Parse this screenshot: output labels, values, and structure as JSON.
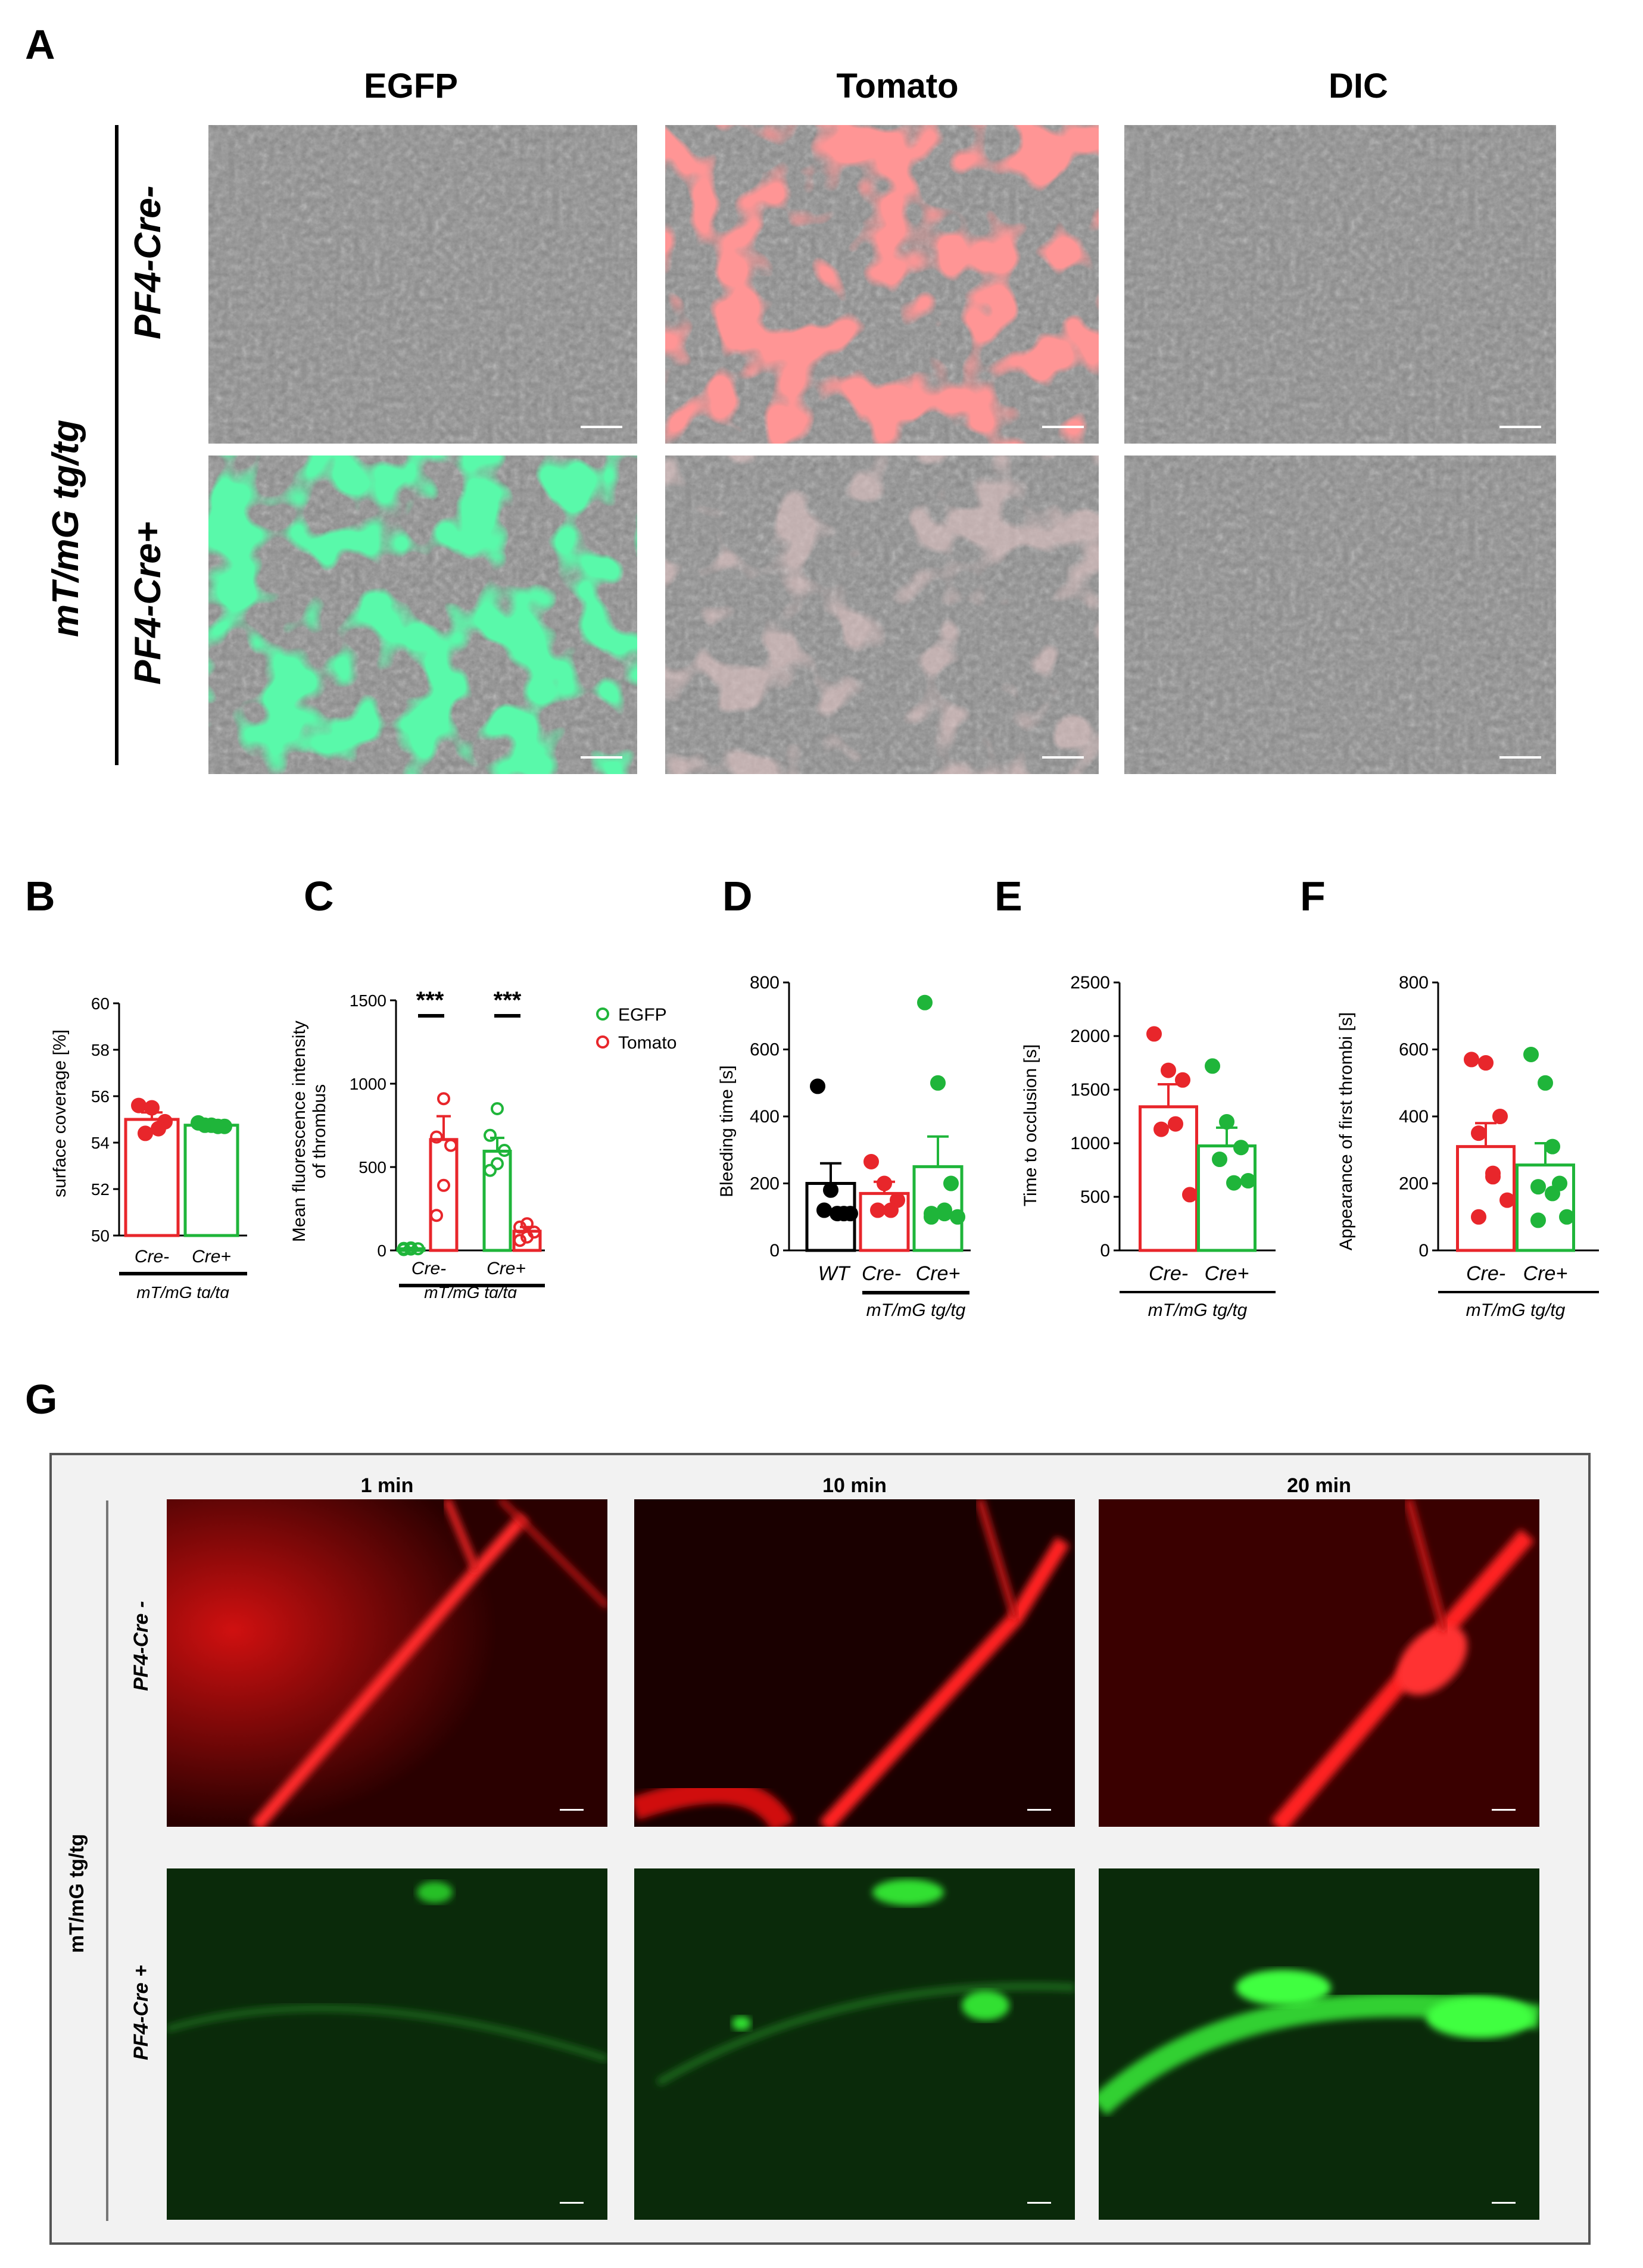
{
  "panel_a": {
    "letter": "A",
    "columns": [
      "EGFP",
      "Tomato",
      "DIC"
    ],
    "group_label": "mT/mG tg/tg",
    "rows": [
      "PF4-Cre-",
      "PF4-Cre+"
    ]
  },
  "panel_b": {
    "letter": "B",
    "ylabel": "surface coverage [%]",
    "yticks": [
      "60",
      "58",
      "56",
      "54",
      "52",
      "50"
    ],
    "categories": [
      "Cre-",
      "Cre+"
    ],
    "group": "mT/mG tg/tg"
  },
  "panel_c": {
    "letter": "C",
    "ylabel_line1": "Mean fluorescence intensity",
    "ylabel_line2": "of thrombus",
    "yticks": [
      "1500",
      "1000",
      "500",
      "0"
    ],
    "categories": [
      "Cre-",
      "Cre+"
    ],
    "group": "mT/mG tg/tg",
    "sig": "***",
    "legend": [
      "EGFP",
      "Tomato"
    ]
  },
  "panel_d": {
    "letter": "D",
    "ylabel": "Bleeding time [s]",
    "yticks": [
      "800",
      "600",
      "400",
      "200",
      "0"
    ],
    "categories": [
      "WT",
      "Cre-",
      "Cre+"
    ],
    "group": "mT/mG tg/tg"
  },
  "panel_e": {
    "letter": "E",
    "ylabel": "Time to occlusion [s]",
    "yticks": [
      "2500",
      "2000",
      "1500",
      "1000",
      "500",
      "0"
    ],
    "categories": [
      "Cre-",
      "Cre+"
    ],
    "group": "mT/mG tg/tg"
  },
  "panel_f": {
    "letter": "F",
    "ylabel": "Appearance of first thrombi [s]",
    "yticks": [
      "800",
      "600",
      "400",
      "200",
      "0"
    ],
    "categories": [
      "Cre-",
      "Cre+"
    ],
    "group": "mT/mG tg/tg"
  },
  "panel_g": {
    "letter": "G",
    "columns": [
      "1 min",
      "10 min",
      "20 min"
    ],
    "group_label": "mT/mG tg/tg",
    "rows": [
      "PF4-Cre -",
      "PF4-Cre +"
    ]
  },
  "colors": {
    "red": "#e8262b",
    "green": "#1fb53a",
    "black": "#000000",
    "egfp_bright": "#22e86a",
    "tomato_bright": "#ff3030"
  },
  "chart_data": [
    {
      "type": "bar",
      "panel": "B",
      "categories": [
        "Cre-",
        "Cre+"
      ],
      "values": [
        55.0,
        54.75
      ],
      "sem": [
        0.3,
        0.1
      ],
      "points": [
        [
          55.6,
          55.5,
          54.9,
          54.4,
          54.6
        ],
        [
          54.85,
          54.75,
          54.7,
          54.75,
          54.7
        ]
      ],
      "colors": [
        "#e8262b",
        "#1fb53a"
      ],
      "ylabel": "surface coverage [%]",
      "ylim": [
        50,
        60
      ]
    },
    {
      "type": "bar",
      "panel": "C",
      "categories": [
        "Cre-",
        "Cre+"
      ],
      "series": [
        {
          "name": "EGFP",
          "values": [
            10,
            595
          ],
          "sem": [
            5,
            80
          ],
          "points": [
            [
              5,
              8,
              10,
              12,
              15
            ],
            [
              480,
              520,
              600,
              690,
              850
            ]
          ]
        },
        {
          "name": "Tomato",
          "values": [
            665,
            115
          ],
          "sem": [
            140,
            25
          ],
          "points": [
            [
              210,
              390,
              630,
              680,
              910
            ],
            [
              60,
              80,
              110,
              140,
              160
            ]
          ]
        }
      ],
      "ylabel": "Mean fluorescence intensity of thrombus",
      "ylim": [
        0,
        1500
      ],
      "annotations": [
        "***",
        "***"
      ]
    },
    {
      "type": "bar",
      "panel": "D",
      "categories": [
        "WT",
        "Cre-",
        "Cre+"
      ],
      "values": [
        200,
        170,
        250
      ],
      "sem": [
        60,
        35,
        90
      ],
      "points": [
        [
          490,
          180,
          110,
          120,
          110,
          110
        ],
        [
          265,
          200,
          150,
          120,
          120
        ],
        [
          740,
          500,
          200,
          110,
          120,
          100,
          100,
          110
        ]
      ],
      "colors": [
        "#000000",
        "#e8262b",
        "#1fb53a"
      ],
      "ylabel": "Bleeding time [s]",
      "ylim": [
        0,
        800
      ]
    },
    {
      "type": "bar",
      "panel": "E",
      "categories": [
        "Cre-",
        "Cre+"
      ],
      "values": [
        1340,
        975
      ],
      "sem": [
        210,
        170
      ],
      "points": [
        [
          2020,
          1680,
          1590,
          1130,
          1180,
          520
        ],
        [
          1720,
          1200,
          960,
          850,
          630,
          650
        ]
      ],
      "colors": [
        "#e8262b",
        "#1fb53a"
      ],
      "ylabel": "Time to occlusion [s]",
      "ylim": [
        0,
        2500
      ]
    },
    {
      "type": "bar",
      "panel": "F",
      "categories": [
        "Cre-",
        "Cre+"
      ],
      "values": [
        310,
        255
      ],
      "sem": [
        70,
        65
      ],
      "points": [
        [
          570,
          560,
          400,
          350,
          220,
          150,
          100,
          230
        ],
        [
          585,
          500,
          200,
          190,
          170,
          100,
          90,
          310
        ]
      ],
      "colors": [
        "#e8262b",
        "#1fb53a"
      ],
      "ylabel": "Appearance of first thrombi [s]",
      "ylim": [
        0,
        800
      ]
    }
  ]
}
